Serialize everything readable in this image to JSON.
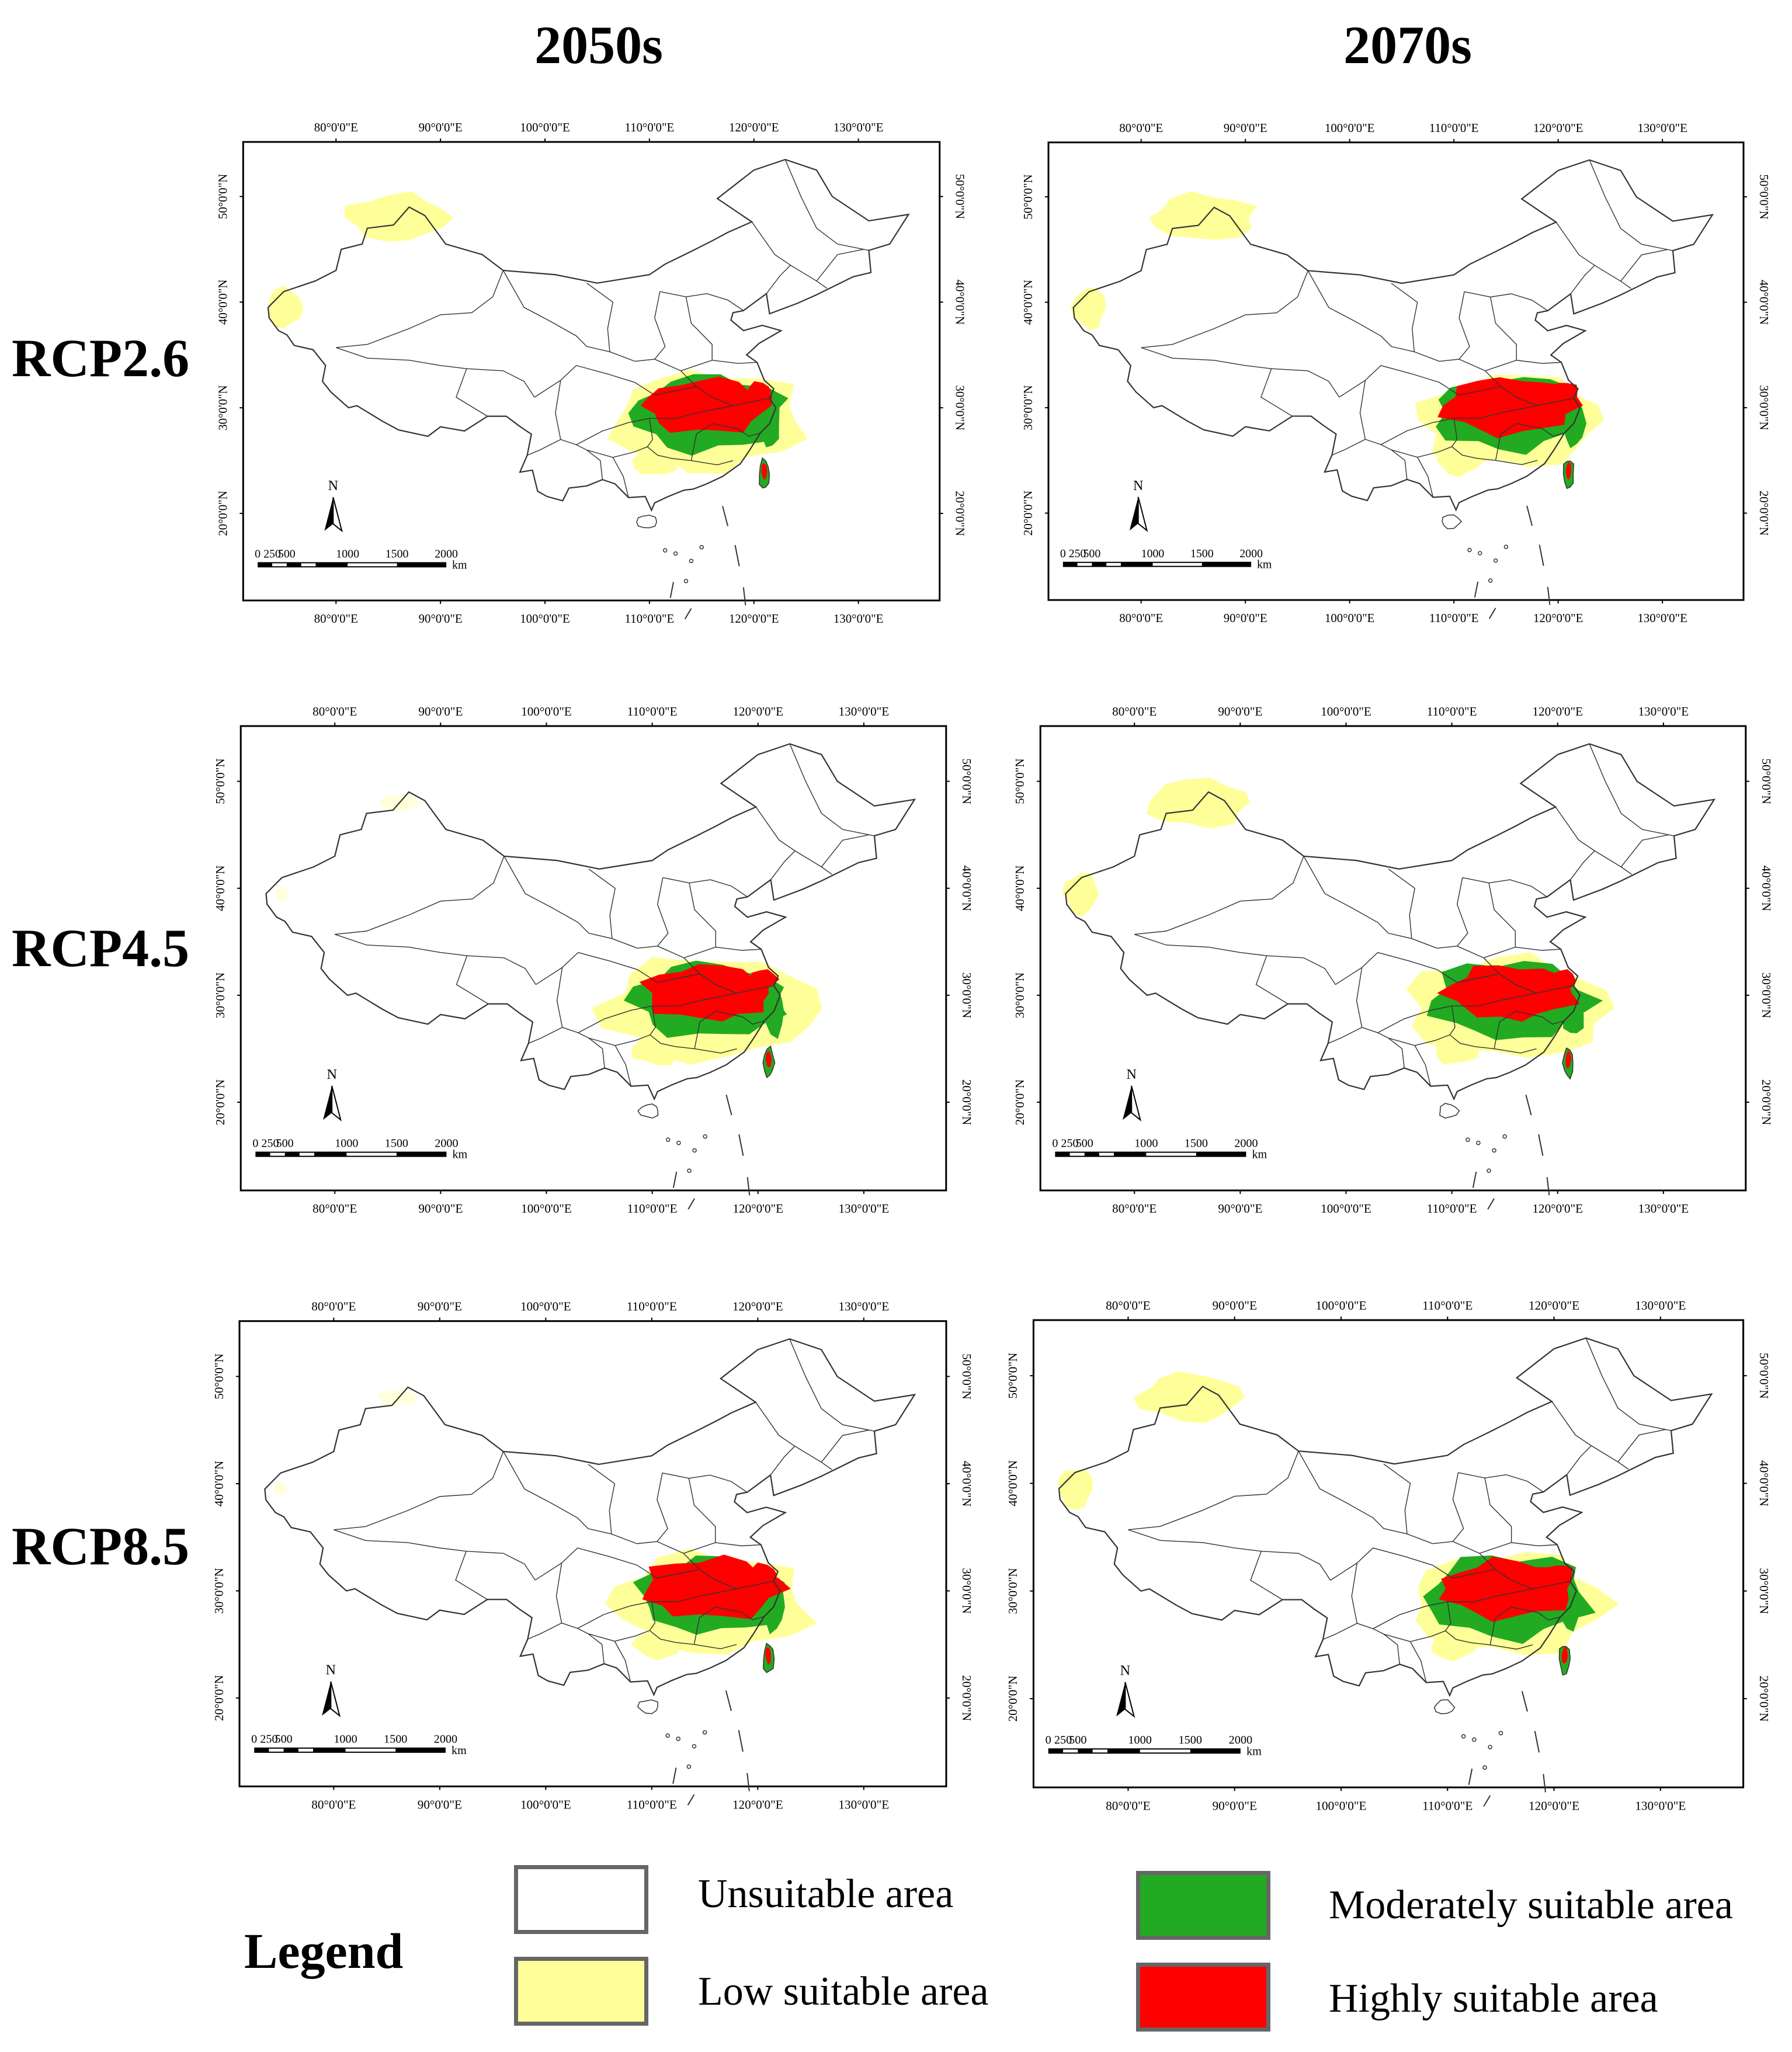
{
  "columns": [
    "2050s",
    "2070s"
  ],
  "rows": [
    "RCP2.6",
    "RCP4.5",
    "RCP8.5"
  ],
  "map": {
    "lon_ticks": [
      "80°0'0\"E",
      "90°0'0\"E",
      "100°0'0\"E",
      "110°0'0\"E",
      "120°0'0\"E",
      "130°0'0\"E"
    ],
    "lat_ticks": [
      "50°0'0\"N",
      "40°0'0\"N",
      "30°0'0\"N",
      "20°0'0\"N"
    ],
    "scale_ticks": [
      "0",
      "250",
      "500",
      "1000",
      "1500",
      "2000"
    ],
    "scale_unit": "km",
    "north_label": "N"
  },
  "legend": {
    "title": "Legend",
    "items": [
      {
        "label": "Unsuitable area",
        "color": "#ffffff"
      },
      {
        "label": "Low suitable area",
        "color": "#ffff99"
      },
      {
        "label": "Moderately suitable area",
        "color": "#22aa22"
      },
      {
        "label": "Highly suitable area",
        "color": "#ff0000"
      }
    ]
  },
  "colors": {
    "unsuitable": "#ffffff",
    "low": "#ffff99",
    "moderate": "#22aa22",
    "high": "#ff0000",
    "boundary": "#333333",
    "frame": "#000000"
  },
  "panels": [
    {
      "period": "2050s",
      "scenario": "RCP2.6",
      "nw_low": true,
      "nw_low_level": 0.9,
      "sc_high_level": 0.7,
      "sc_mod_level": 0.6,
      "sc_low_level": 0.6
    },
    {
      "period": "2070s",
      "scenario": "RCP2.6",
      "nw_low": true,
      "nw_low_level": 0.9,
      "sc_high_level": 0.85,
      "sc_mod_level": 0.6,
      "sc_low_level": 0.5
    },
    {
      "period": "2050s",
      "scenario": "RCP4.5",
      "nw_low": false,
      "nw_low_level": 0.2,
      "sc_high_level": 0.75,
      "sc_mod_level": 0.6,
      "sc_low_level": 0.8
    },
    {
      "period": "2070s",
      "scenario": "RCP4.5",
      "nw_low": true,
      "nw_low_level": 0.9,
      "sc_high_level": 0.7,
      "sc_mod_level": 0.7,
      "sc_low_level": 0.7
    },
    {
      "period": "2050s",
      "scenario": "RCP8.5",
      "nw_low": false,
      "nw_low_level": 0.2,
      "sc_high_level": 0.9,
      "sc_mod_level": 0.5,
      "sc_low_level": 0.6
    },
    {
      "period": "2070s",
      "scenario": "RCP8.5",
      "nw_low": true,
      "nw_low_level": 0.9,
      "sc_high_level": 0.8,
      "sc_mod_level": 0.8,
      "sc_low_level": 0.6
    }
  ]
}
